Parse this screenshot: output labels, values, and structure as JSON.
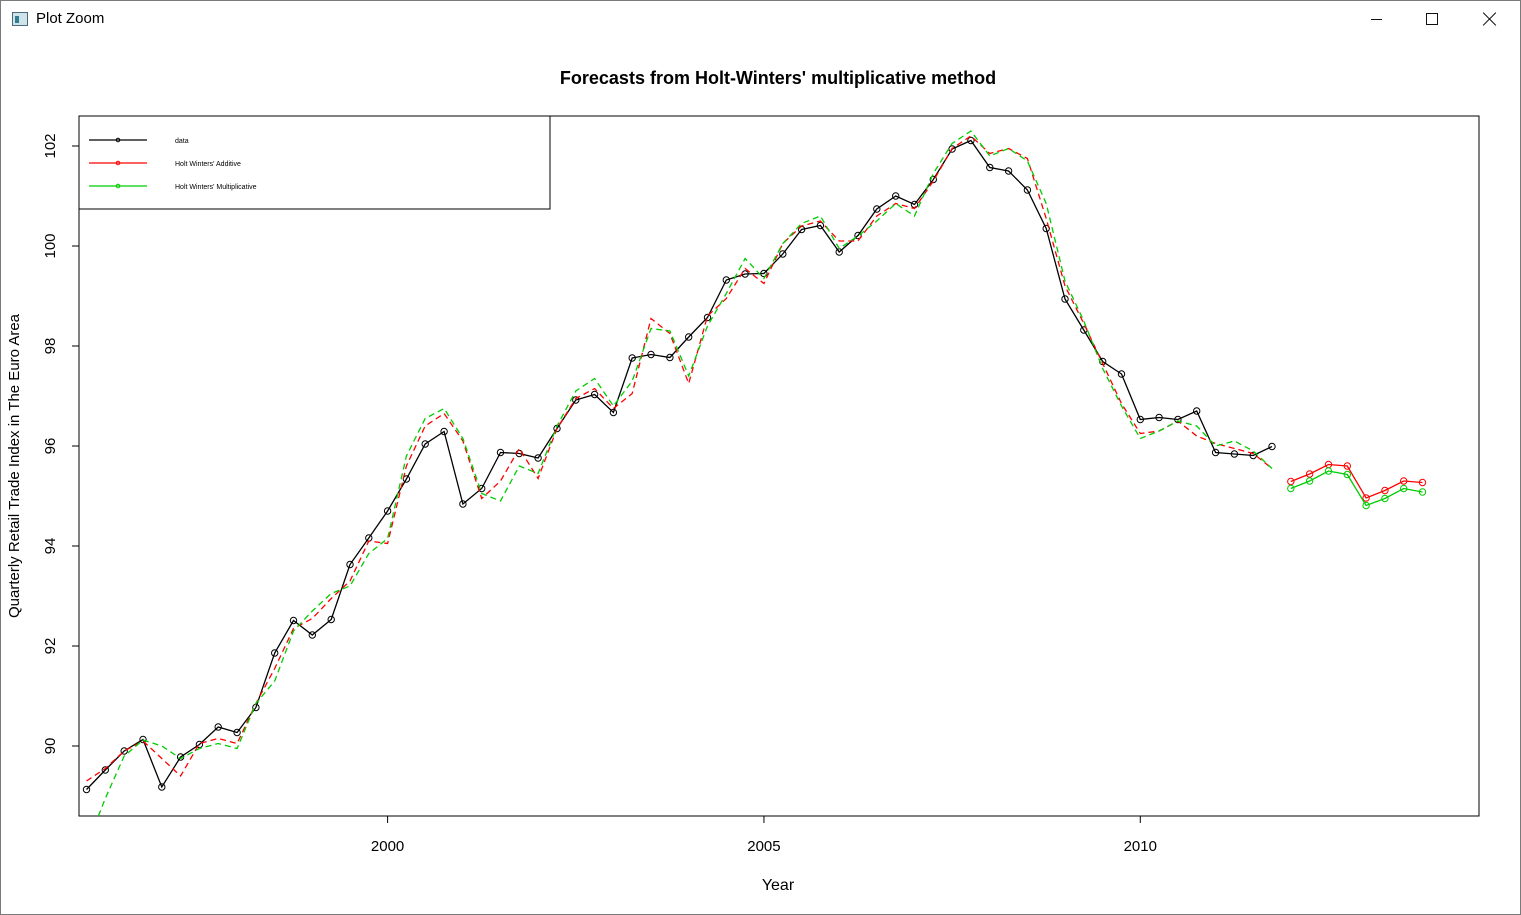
{
  "window": {
    "title": "Plot Zoom",
    "icon": "plot-window-icon",
    "controls": {
      "minimize": "minimize-icon",
      "maximize": "maximize-icon",
      "close": "close-icon"
    }
  },
  "chart_data": {
    "type": "line",
    "title": "Forecasts from Holt-Winters' multiplicative method",
    "xlabel": "Year",
    "ylabel": "Quarterly Retail Trade Index in The Euro Area",
    "xlim": [
      1995.9,
      2014.5
    ],
    "ylim": [
      88.6,
      102.6
    ],
    "x_ticks": [
      2000,
      2005,
      2010
    ],
    "y_ticks": [
      90,
      92,
      94,
      96,
      98,
      100,
      102
    ],
    "grid": false,
    "legend_position": "top-left",
    "legend": [
      {
        "label": "data",
        "color": "#000000"
      },
      {
        "label": "Holt Winters' Additive",
        "color": "#ff0000"
      },
      {
        "label": "Holt Winters' Multiplicative",
        "color": "#00cc00"
      }
    ],
    "series": [
      {
        "name": "data",
        "color": "#000000",
        "style": "solid",
        "markers": true,
        "x_start": 1996.0,
        "step": 0.25,
        "values": [
          89.13,
          89.52,
          89.9,
          90.13,
          89.18,
          89.78,
          90.03,
          90.38,
          90.27,
          90.77,
          91.86,
          92.51,
          92.22,
          92.53,
          93.63,
          94.16,
          94.7,
          95.34,
          96.04,
          96.29,
          94.84,
          95.15,
          95.87,
          95.85,
          95.76,
          96.35,
          96.92,
          97.03,
          96.67,
          97.76,
          97.83,
          97.77,
          98.18,
          98.57,
          99.32,
          99.44,
          99.45,
          99.84,
          100.33,
          100.41,
          99.88,
          100.21,
          100.74,
          101.0,
          100.83,
          101.33,
          101.94,
          102.11,
          101.57,
          101.5,
          101.12,
          100.35,
          98.94,
          98.32,
          97.69,
          97.44,
          96.53,
          96.57,
          96.53,
          96.7,
          95.87,
          95.84,
          95.81,
          95.99
        ]
      },
      {
        "name": "Holt Winters' Additive (fitted)",
        "color": "#ff0000",
        "style": "dashed",
        "markers": false,
        "x_start": 1996.0,
        "step": 0.25,
        "values": [
          89.3,
          89.55,
          89.9,
          90.1,
          89.75,
          89.4,
          90.05,
          90.15,
          90.05,
          90.85,
          91.55,
          92.35,
          92.55,
          92.95,
          93.3,
          94.1,
          94.05,
          95.6,
          96.4,
          96.65,
          96.1,
          94.95,
          95.3,
          95.95,
          95.35,
          96.35,
          96.95,
          97.15,
          96.75,
          97.05,
          98.55,
          98.25,
          97.25,
          98.6,
          98.95,
          99.55,
          99.25,
          100.05,
          100.4,
          100.5,
          100.1,
          100.1,
          100.6,
          100.85,
          100.75,
          101.3,
          101.95,
          102.2,
          101.85,
          101.95,
          101.75,
          100.55,
          99.2,
          98.45,
          97.65,
          96.85,
          96.25,
          96.3,
          96.5,
          96.2,
          96.05,
          95.95,
          95.85,
          95.55
        ]
      },
      {
        "name": "Holt Winters' Multiplicative (fitted)",
        "color": "#00cc00",
        "style": "dashed",
        "markers": false,
        "x_start": 1996.0,
        "step": 0.25,
        "values": [
          88.0,
          88.95,
          89.8,
          90.12,
          90.0,
          89.75,
          89.95,
          90.05,
          89.95,
          90.85,
          91.3,
          92.3,
          92.7,
          93.05,
          93.2,
          93.85,
          94.15,
          95.8,
          96.55,
          96.75,
          96.15,
          95.05,
          94.9,
          95.6,
          95.45,
          96.4,
          97.1,
          97.35,
          96.8,
          97.3,
          98.35,
          98.3,
          97.4,
          98.4,
          99.05,
          99.75,
          99.35,
          100.05,
          100.45,
          100.6,
          99.95,
          100.2,
          100.5,
          100.85,
          100.6,
          101.45,
          102.05,
          102.3,
          101.8,
          101.95,
          101.7,
          100.85,
          99.3,
          98.5,
          97.55,
          96.8,
          96.15,
          96.3,
          96.5,
          96.4,
          96.0,
          96.1,
          95.9,
          95.55
        ]
      },
      {
        "name": "Holt Winters' Additive (forecast)",
        "color": "#ff0000",
        "style": "solid",
        "markers": true,
        "x_start": 2012.0,
        "step": 0.25,
        "values": [
          95.29,
          95.44,
          95.63,
          95.6,
          94.96,
          95.11,
          95.3,
          95.27
        ]
      },
      {
        "name": "Holt Winters' Multiplicative (forecast)",
        "color": "#00cc00",
        "style": "solid",
        "markers": true,
        "x_start": 2012.0,
        "step": 0.25,
        "values": [
          95.15,
          95.3,
          95.5,
          95.43,
          94.81,
          94.95,
          95.15,
          95.08
        ]
      }
    ]
  }
}
